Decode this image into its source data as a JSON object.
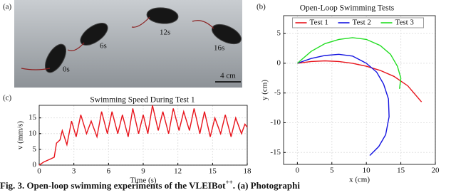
{
  "photo": {
    "label": "(a)",
    "timestamps": [
      "0s",
      "6s",
      "12s",
      "16s"
    ],
    "scale_bar": "4 cm"
  },
  "chart_data": [
    {
      "type": "line",
      "label": "(b)",
      "title": "Open-Loop Swimming Tests",
      "xlabel": "x (cm)",
      "ylabel": "y (cm)",
      "xlim": [
        -2,
        20
      ],
      "ylim": [
        -17,
        8
      ],
      "xticks": [
        0,
        5,
        10,
        15,
        20
      ],
      "yticks": [
        -15,
        -10,
        -5,
        0,
        5
      ],
      "grid": true,
      "legend": "top",
      "series": [
        {
          "name": "Test 1",
          "color": "#e8141c",
          "x": [
            0,
            2,
            4,
            6,
            8,
            10,
            12,
            14,
            16,
            18
          ],
          "values": [
            0,
            0.3,
            0.4,
            0.3,
            0,
            -0.5,
            -1.2,
            -2.2,
            -3.8,
            -6.5
          ]
        },
        {
          "name": "Test 2",
          "color": "#1414e0",
          "x": [
            0,
            2,
            4,
            6,
            8,
            10,
            11.5,
            12.5,
            13.2,
            13.3,
            12.8,
            11.8,
            10.5
          ],
          "values": [
            0,
            0.8,
            1.3,
            1.5,
            1.2,
            0,
            -1.5,
            -3.5,
            -6,
            -9,
            -12,
            -14,
            -15.5
          ]
        },
        {
          "name": "Test 3",
          "color": "#22dd22",
          "x": [
            0,
            2,
            4,
            6,
            8,
            10,
            12,
            13.5,
            14.5,
            15,
            14.8
          ],
          "values": [
            0,
            2,
            3.3,
            4,
            4.3,
            4,
            3,
            1.5,
            -0.5,
            -2.5,
            -4.3
          ]
        }
      ]
    },
    {
      "type": "line",
      "label": "(c)",
      "title": "Swimming Speed During Test 1",
      "xlabel": "Time (s)",
      "ylabel": "v (mm/s)",
      "xlim": [
        0,
        18
      ],
      "ylim": [
        0,
        19
      ],
      "xticks": [
        0,
        3,
        6,
        9,
        12,
        15,
        18
      ],
      "yticks": [
        0,
        5,
        10,
        15
      ],
      "grid": true,
      "color": "#e8141c",
      "x": [
        0,
        0.4,
        1.0,
        1.3,
        1.5,
        1.8,
        2.0,
        2.4,
        2.8,
        3.2,
        3.6,
        4.1,
        4.5,
        5.0,
        5.4,
        5.9,
        6.3,
        6.8,
        7.2,
        7.7,
        8.1,
        8.6,
        9.0,
        9.4,
        9.8,
        10.3,
        10.7,
        11.2,
        11.6,
        12.1,
        12.5,
        13.0,
        13.4,
        13.9,
        14.3,
        14.8,
        15.2,
        15.7,
        16.1,
        16.6,
        17.0,
        17.5,
        17.8,
        18.0
      ],
      "values": [
        0,
        1,
        2,
        2.5,
        7,
        8,
        11,
        6.5,
        14,
        9,
        16,
        10,
        14,
        9,
        17,
        10,
        17,
        10,
        16,
        9,
        18,
        10,
        16,
        10,
        19,
        11,
        17,
        10,
        18,
        11,
        17,
        11,
        18,
        10,
        17,
        9,
        15,
        10,
        16,
        9,
        15,
        10,
        13,
        12
      ]
    }
  ],
  "caption": {
    "lead": "Fig. 3. Open-loop swimming experiments of the VLEIBot",
    "sup": "++",
    "tail": ". (a) Photographi"
  }
}
